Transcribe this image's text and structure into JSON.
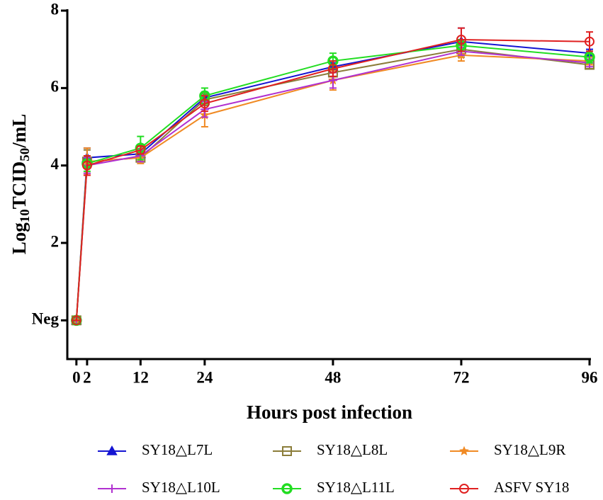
{
  "chart_data": {
    "type": "line",
    "y_label": [
      "Log",
      "10",
      "TCID",
      "50",
      "/mL"
    ],
    "x_label": "Hours post infection",
    "x": [
      0,
      2,
      12,
      24,
      48,
      72,
      96
    ],
    "xlim": [
      -1.7,
      96
    ],
    "xticks": [
      0,
      2,
      12,
      24,
      48,
      72,
      96
    ],
    "ylim": [
      -1,
      8
    ],
    "yticks": [
      {
        "value": 0,
        "label": "Neg"
      },
      2,
      4,
      6,
      8
    ],
    "series": [
      {
        "name": "SY18△L7L",
        "color": "#1414d2",
        "marker": "triangle",
        "values": [
          0,
          4.2,
          4.3,
          5.75,
          6.55,
          7.2,
          6.9
        ],
        "errors": [
          0,
          0.25,
          0.1,
          0.15,
          0.1,
          0.35,
          0.1
        ]
      },
      {
        "name": "SY18△L8L",
        "color": "#8b7d3a",
        "marker": "square",
        "values": [
          0,
          4.1,
          4.2,
          5.7,
          6.4,
          7.0,
          6.6
        ],
        "errors": [
          0,
          0.3,
          0.1,
          0.15,
          0.1,
          0.2,
          0.1
        ]
      },
      {
        "name": "SY18△L9R",
        "color": "#f08a24",
        "marker": "star",
        "values": [
          0,
          4.1,
          4.2,
          5.3,
          6.2,
          6.85,
          6.7
        ],
        "errors": [
          0,
          0.35,
          0.15,
          0.3,
          0.25,
          0.15,
          0.1
        ]
      },
      {
        "name": "SY18△L10L",
        "color": "#b030d0",
        "marker": "plus",
        "values": [
          0,
          4.0,
          4.25,
          5.45,
          6.2,
          6.95,
          6.65
        ],
        "errors": [
          0,
          0.2,
          0.15,
          0.2,
          0.2,
          0.1,
          0.1
        ]
      },
      {
        "name": "SY18△L11L",
        "color": "#22dd22",
        "marker": "circle-dot",
        "values": [
          0,
          4.05,
          4.45,
          5.8,
          6.7,
          7.1,
          6.8
        ],
        "errors": [
          0,
          0.2,
          0.3,
          0.2,
          0.2,
          0.15,
          0.15
        ]
      },
      {
        "name": "ASFV SY18",
        "color": "#e02020",
        "marker": "circle",
        "values": [
          0,
          4.0,
          4.4,
          5.6,
          6.5,
          7.25,
          7.2
        ],
        "errors": [
          0,
          0.25,
          0.1,
          0.2,
          0.2,
          0.3,
          0.25
        ]
      }
    ]
  }
}
